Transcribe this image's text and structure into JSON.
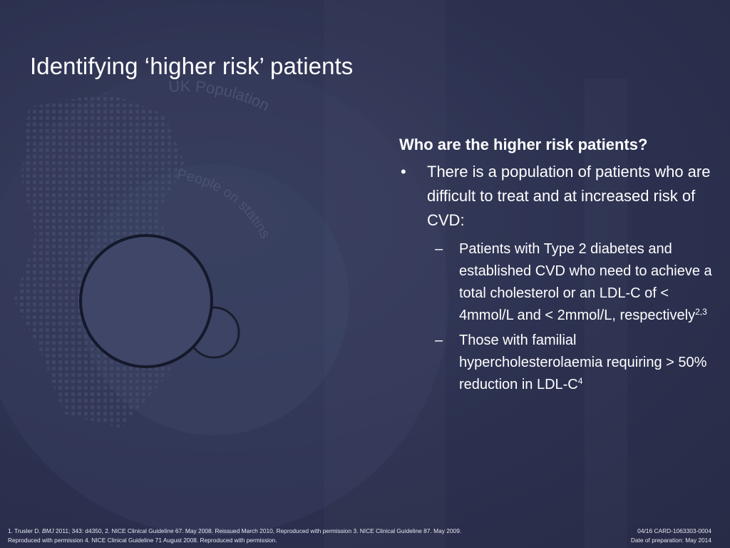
{
  "slide": {
    "title": "Identifying ‘higher risk’ patients",
    "question": "Who are the higher risk patients?",
    "bullet": {
      "mark": "•",
      "text": "There is a population of patients who are difficult to treat and at increased risk of CVD:"
    },
    "sub_bullets": [
      {
        "mark": "–",
        "text": "Patients with Type 2 diabetes and established CVD who need to achieve a total cholesterol or an LDL-C of < 4mmol/L and < 2mmol/L, respectively",
        "sup": "2,3"
      },
      {
        "mark": "–",
        "text": "Those with familial hypercholesterolaemia requiring > 50% reduction in LDL-C",
        "sup": "4"
      }
    ],
    "background_text": [
      "UK Population",
      "People on statins"
    ],
    "colors": {
      "background": "#2c3150",
      "text": "#ffffff"
    }
  },
  "footer": {
    "references_line1_pre": "1. Trusler D. ",
    "references_line1_journal": "BMJ",
    "references_line1_post": " 2011; 343: d4350, 2. NICE Clinical Guideline 67. May 2008. Reissued March 2010, Reproduced with permission 3. NICE Clinical Guideline 87. May 2009.",
    "references_line2": "Reproduced with permission 4. NICE Clinical Guideline 71 August 2008. Reproduced with permission.",
    "code": "04/16 CARD-1063303-0004",
    "date": "Date of preparation: May 2014"
  }
}
